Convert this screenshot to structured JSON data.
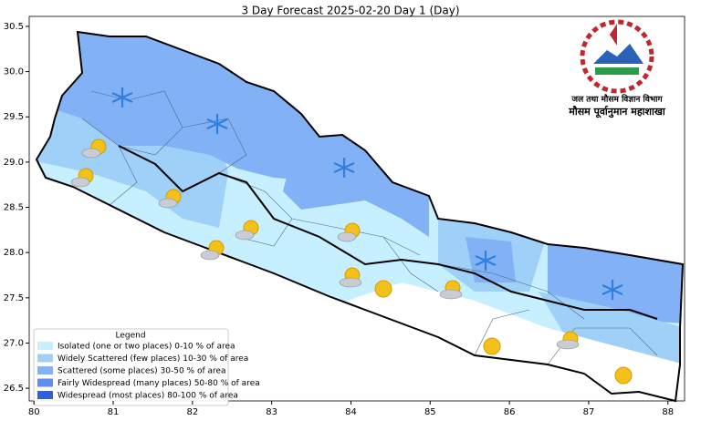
{
  "chart_data": {
    "type": "map",
    "title": "3 Day Forecast 2025-02-20 Day 1 (Day)",
    "xlim": [
      79.94,
      88.21
    ],
    "xticks": [
      80,
      81,
      82,
      83,
      84,
      85,
      86,
      87,
      88
    ],
    "ylim": [
      26.36,
      30.61
    ],
    "yticks": [
      26.5,
      {
        "value": 27,
        "label": "27.0"
      },
      27.5,
      {
        "value": 28,
        "label": "28.0"
      },
      28.5,
      {
        "value": 29,
        "label": "29.0"
      },
      29.5,
      {
        "value": 30,
        "label": "30.0"
      },
      30.5
    ]
  },
  "legend": {
    "title": "Legend",
    "entries": [
      {
        "label": "Isolated (one or two places)  0-10 % of area",
        "color": "#c6efff"
      },
      {
        "label": "Widely Scattered (few places) 10-30 % of area",
        "color": "#9fd0f8"
      },
      {
        "label": "Scattered (some places) 30-50  % of area",
        "color": "#82b2f5"
      },
      {
        "label": "Fairly Widespread (many places) 50-80 % of area",
        "color": "#5e8ef0"
      },
      {
        "label": "Widespread (most places) 80-100 % of area",
        "color": "#2e5fe0"
      }
    ]
  },
  "logo": {
    "line1": "जल तथा मौसम विज्ञान विभाग",
    "line2": "मौसम पूर्वानुमान महाशाखा"
  }
}
